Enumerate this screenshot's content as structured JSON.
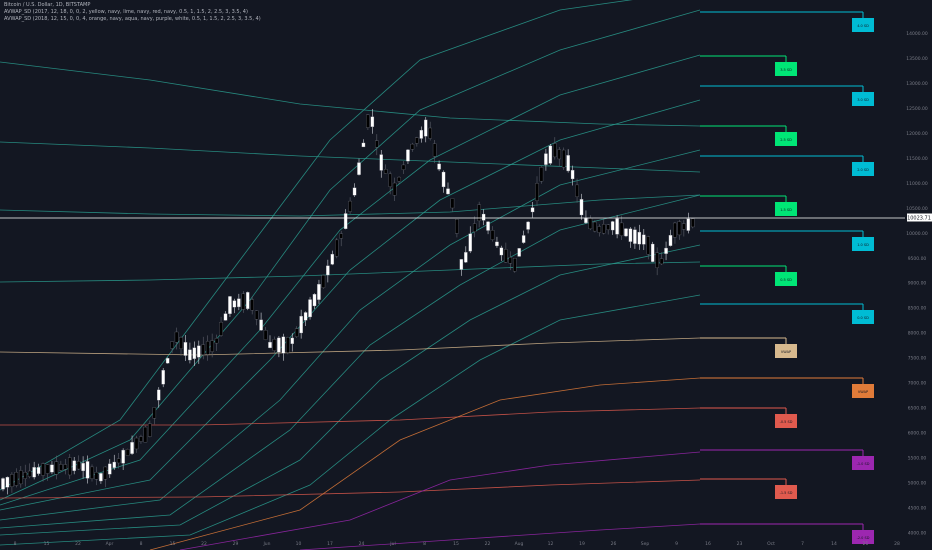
{
  "legend": {
    "symbol": "Bitcoin / U.S. Dollar, 1D, BITSTAMP",
    "line1": "AVWAP_SD (2017, 12, 18, 0, 0, 2, yellow, navy, lime, navy, red, navy, 0.5, 1, 1.5, 2, 2.5, 3, 3.5, 4)",
    "line2": "AVWAP_SD (2018, 12, 15, 0, 0, 4, orange, navy, aqua, navy, purple, white, 0.5, 1, 1.5, 2, 2.5, 3, 3.5, 4)"
  },
  "price_label": "10023.71",
  "chart_data": {
    "type": "candlestick",
    "title": "Bitcoin / U.S. Dollar, 1D, BITSTAMP",
    "x_ticks": [
      "8",
      "15",
      "22",
      "Apr",
      "8",
      "15",
      "22",
      "29",
      "Jun",
      "10",
      "17",
      "24",
      "Jul",
      "8",
      "15",
      "22",
      "Aug",
      "12",
      "19",
      "26",
      "Sep",
      "9",
      "16",
      "23",
      "Oct",
      "7",
      "14",
      "21",
      "28"
    ],
    "y_ticks": [
      14000,
      13500,
      13000,
      12500,
      12000,
      11500,
      11000,
      10500,
      10000,
      9500,
      9000,
      8500,
      8000,
      7500,
      7000,
      6500,
      6000,
      5500,
      5000,
      4500,
      4000
    ],
    "ylim": [
      3850,
      14500
    ],
    "last_price": 10023.71,
    "line_colors": {
      "teal": "#2a9d8f",
      "aqua": "#00bcd4",
      "lime": "#00e676",
      "tan": "#d7b98e",
      "orange": "#e07b39",
      "red": "#e05a4e",
      "purple": "#9c27b0"
    },
    "candles_start": 3950,
    "candles_end": 10023
  },
  "bands": {
    "markers": [
      {
        "label": "4.0 SD",
        "color": "#00bcd4"
      },
      {
        "label": "3.5 SD",
        "color": "#00e676"
      },
      {
        "label": "3.0 SD",
        "color": "#00bcd4"
      },
      {
        "label": "2.5 SD",
        "color": "#00e676"
      },
      {
        "label": "2.0 SD",
        "color": "#00bcd4"
      },
      {
        "label": "1.5 SD",
        "color": "#00e676"
      },
      {
        "label": "1.0 SD",
        "color": "#00bcd4"
      },
      {
        "label": "0.5 SD",
        "color": "#00e676"
      },
      {
        "label": "0.0 SD",
        "color": "#00bcd4"
      },
      {
        "label": "VWAP",
        "color": "#d7b98e"
      },
      {
        "label": "VWAP",
        "color": "#e07b39"
      },
      {
        "label": "-0.5 SD",
        "color": "#e05a4e"
      },
      {
        "label": "-1.0 SD",
        "color": "#9c27b0"
      },
      {
        "label": "-1.5 SD",
        "color": "#e05a4e"
      },
      {
        "label": "-2.0 SD",
        "color": "#9c27b0"
      }
    ]
  }
}
